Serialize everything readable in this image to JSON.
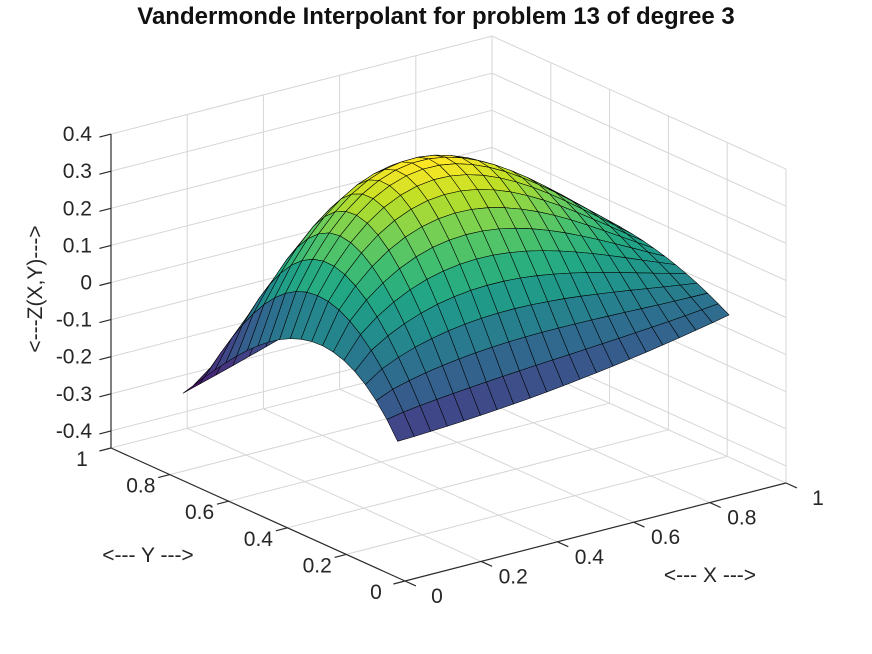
{
  "chart_data": {
    "type": "surface",
    "title": "Vandermonde Interpolant for problem 13 of degree 3",
    "xlabel": "<--- X --->",
    "ylabel": "<--- Y --->",
    "zlabel": "<---Z(X,Y)--->",
    "x_ticks": [
      "0",
      "0.2",
      "0.4",
      "0.6",
      "0.8",
      "1"
    ],
    "x_tick_vals": [
      0,
      0.2,
      0.4,
      0.6,
      0.8,
      1
    ],
    "y_ticks": [
      "0",
      "0.2",
      "0.4",
      "0.6",
      "0.8",
      "1"
    ],
    "y_tick_vals": [
      0,
      0.2,
      0.4,
      0.6,
      0.8,
      1
    ],
    "z_ticks": [
      "-0.4",
      "-0.3",
      "-0.2",
      "-0.1",
      "0",
      "0.1",
      "0.2",
      "0.3",
      "0.4"
    ],
    "z_tick_vals": [
      -0.4,
      -0.3,
      -0.2,
      -0.1,
      0,
      0.1,
      0.2,
      0.3,
      0.4
    ],
    "xlim": [
      0,
      1
    ],
    "ylim": [
      0,
      1
    ],
    "zlim": [
      -0.446,
      0.4
    ],
    "view": {
      "azimuth": -37.5,
      "elevation": 30
    },
    "grid": true,
    "surface": {
      "domain": {
        "x": [
          0.05,
          0.92
        ],
        "y": [
          0.09,
          0.82
        ]
      },
      "grid_n": 21,
      "z_range": [
        -0.247,
        0.395
      ],
      "corner_z": [
        -0.115,
        -0.004,
        -0.247,
        0.06
      ],
      "peak": {
        "x": 0.398,
        "y": 0.513,
        "z": 0.395
      },
      "edge_poly": {
        "front": [
          -0.115,
          0.029,
          0.082
        ],
        "back": [
          -0.247,
          0.257,
          0.05
        ],
        "left": [
          -0.115,
          1.0,
          -1.7,
          0.568
        ],
        "right": [
          -0.004,
          0.352,
          -0.288
        ]
      },
      "bump": {
        "amp": 0.3665,
        "s_exp": 0.756,
        "t_exp": 1.272
      }
    },
    "colormap": "viridis",
    "colormap_stops": [
      "#440154",
      "#482475",
      "#414487",
      "#355f8d",
      "#2b748e",
      "#21918c",
      "#22a884",
      "#44bf70",
      "#7ad151",
      "#bddf26",
      "#fde725"
    ],
    "colors": {
      "background": "#ffffff",
      "grid_line": "#d6d6d6",
      "axis_line": "#2b2b2b",
      "tick_text": "#262626",
      "mesh_edge": "#000000"
    }
  }
}
